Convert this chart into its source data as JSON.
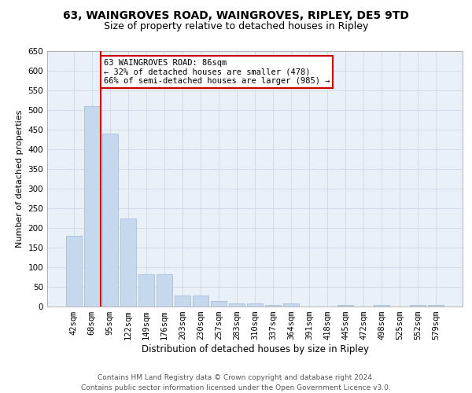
{
  "title1": "63, WAINGROVES ROAD, WAINGROVES, RIPLEY, DE5 9TD",
  "title2": "Size of property relative to detached houses in Ripley",
  "xlabel": "Distribution of detached houses by size in Ripley",
  "ylabel": "Number of detached properties",
  "categories": [
    "42sqm",
    "68sqm",
    "95sqm",
    "122sqm",
    "149sqm",
    "176sqm",
    "203sqm",
    "230sqm",
    "257sqm",
    "283sqm",
    "310sqm",
    "337sqm",
    "364sqm",
    "391sqm",
    "418sqm",
    "445sqm",
    "472sqm",
    "498sqm",
    "525sqm",
    "552sqm",
    "579sqm"
  ],
  "bar_values": [
    180,
    510,
    440,
    225,
    83,
    83,
    28,
    28,
    15,
    8,
    8,
    5,
    8,
    0,
    0,
    5,
    0,
    5,
    0,
    5,
    5
  ],
  "bar_color": "#c5d8ed",
  "bar_edge_color": "#a0b8d0",
  "vline_color": "#cc0000",
  "annotation_text": "63 WAINGROVES ROAD: 86sqm\n← 32% of detached houses are smaller (478)\n66% of semi-detached houses are larger (985) →",
  "annotation_box_color": "#ffffff",
  "annotation_edge_color": "#cc0000",
  "ylim": [
    0,
    650
  ],
  "yticks": [
    0,
    50,
    100,
    150,
    200,
    250,
    300,
    350,
    400,
    450,
    500,
    550,
    600,
    650
  ],
  "grid_color": "#d0d8e8",
  "bg_color": "#eaf0f8",
  "footer": "Contains HM Land Registry data © Crown copyright and database right 2024.\nContains public sector information licensed under the Open Government Licence v3.0.",
  "title1_fontsize": 10,
  "title2_fontsize": 9,
  "xlabel_fontsize": 8.5,
  "ylabel_fontsize": 8,
  "tick_fontsize": 7.5,
  "annotation_fontsize": 7.5,
  "footer_fontsize": 6.5
}
